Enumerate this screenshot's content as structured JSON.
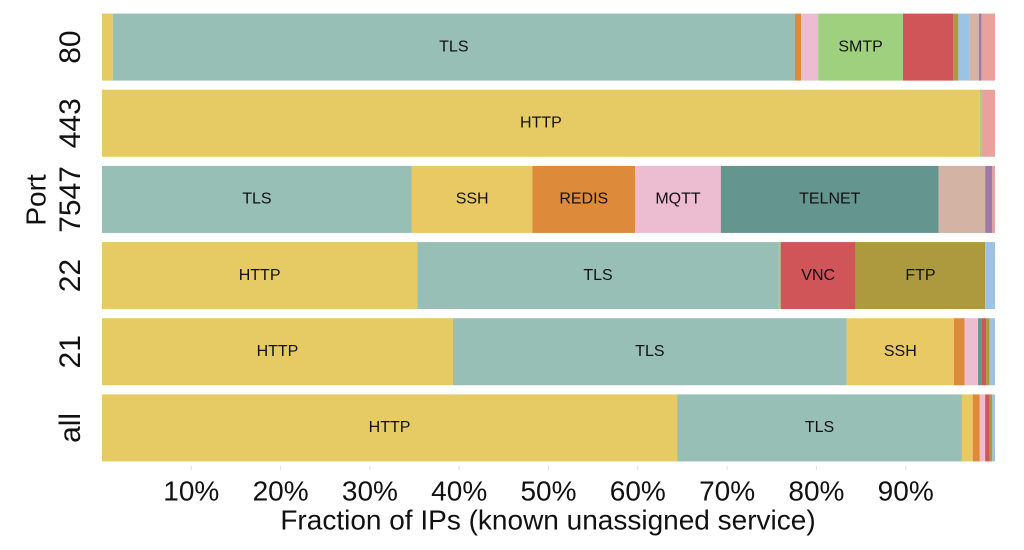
{
  "chart_data": {
    "type": "stacked-barh",
    "y_label": "Port",
    "x_label": "Fraction of IPs (known unassigned service)",
    "categories": [
      "80",
      "443",
      "7547",
      "22",
      "21",
      "all"
    ],
    "xlim": [
      0,
      100
    ],
    "xticks": [
      {
        "value": 10,
        "label": "10%"
      },
      {
        "value": 20,
        "label": "20%"
      },
      {
        "value": 30,
        "label": "30%"
      },
      {
        "value": 40,
        "label": "40%"
      },
      {
        "value": 50,
        "label": "50%"
      },
      {
        "value": 60,
        "label": "60%"
      },
      {
        "value": 70,
        "label": "70%"
      },
      {
        "value": 80,
        "label": "80%"
      },
      {
        "value": 90,
        "label": "90%"
      }
    ],
    "series": [
      {
        "name": "HTTP",
        "color": "#e6cb65",
        "values": [
          1.2,
          98.3,
          0,
          35.3,
          39.3,
          64.4
        ]
      },
      {
        "name": "TLS",
        "color": "#97bfb5",
        "values": [
          76.4,
          0,
          34.7,
          40.5,
          44.1,
          31.9
        ]
      },
      {
        "name": "SSH",
        "color": "#e8c964",
        "values": [
          0,
          0,
          13.5,
          0,
          12.0,
          1.2
        ]
      },
      {
        "name": "REDIS",
        "color": "#dd8a3a",
        "values": [
          0.7,
          0,
          11.5,
          0,
          1.2,
          0.8
        ]
      },
      {
        "name": "MQTT",
        "color": "#ecbcd0",
        "values": [
          1.9,
          0,
          9.6,
          0,
          1.5,
          0.6
        ]
      },
      {
        "name": "SMTP",
        "color": "#9fd07e",
        "values": [
          9.5,
          0.2,
          0,
          0.2,
          0,
          0
        ]
      },
      {
        "name": "TELNET",
        "color": "#65958f",
        "values": [
          0,
          0,
          24.4,
          0,
          0.4,
          0
        ]
      },
      {
        "name": "VNC",
        "color": "#cf5559",
        "values": [
          5.6,
          0,
          0,
          8.4,
          0.5,
          0.5
        ]
      },
      {
        "name": "FTP",
        "color": "#ad9a3e",
        "values": [
          0.6,
          0,
          0,
          14.5,
          0.4,
          0.3
        ]
      },
      {
        "color": "#9cc3e4",
        "values": [
          1.2,
          0,
          0,
          1.1,
          0.6,
          0.3
        ]
      },
      {
        "color": "#d3b3a3",
        "values": [
          1.1,
          0,
          5.2,
          0,
          0,
          0
        ]
      },
      {
        "color": "#9e79a8",
        "values": [
          0.3,
          0,
          0.8,
          0,
          0,
          0
        ]
      },
      {
        "color": "#e8a19b",
        "values": [
          1.5,
          1.5,
          0.3,
          0,
          0,
          0
        ]
      }
    ]
  }
}
